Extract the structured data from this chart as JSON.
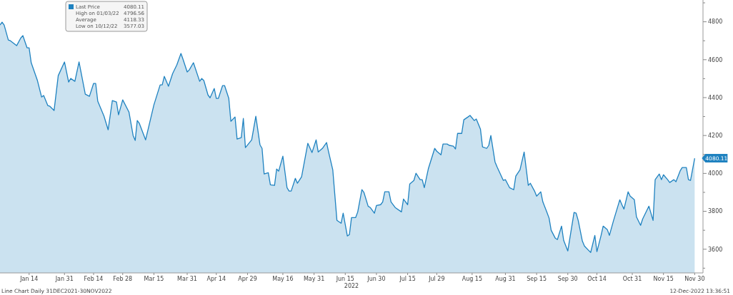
{
  "chart_data": {
    "type": "area",
    "xlabel": "2022",
    "x": [
      "2021-12-31",
      "2022-01-01",
      "2022-01-02",
      "2022-01-04",
      "2022-01-05",
      "2022-01-08",
      "2022-01-10",
      "2022-01-11",
      "2022-01-13",
      "2022-01-14",
      "2022-01-15",
      "2022-01-18",
      "2022-01-20",
      "2022-01-21",
      "2022-01-23",
      "2022-01-24",
      "2022-01-26",
      "2022-01-28",
      "2022-01-31",
      "2022-02-02",
      "2022-02-03",
      "2022-02-05",
      "2022-02-07",
      "2022-02-10",
      "2022-02-12",
      "2022-02-14",
      "2022-02-15",
      "2022-02-16",
      "2022-02-19",
      "2022-02-21",
      "2022-02-23",
      "2022-02-25",
      "2022-02-26",
      "2022-02-28",
      "2022-03-03",
      "2022-03-05",
      "2022-03-06",
      "2022-03-07",
      "2022-03-08",
      "2022-03-11",
      "2022-03-15",
      "2022-03-18",
      "2022-03-19",
      "2022-03-20",
      "2022-03-22",
      "2022-03-24",
      "2022-03-26",
      "2022-03-28",
      "2022-03-29",
      "2022-03-31",
      "2022-04-01",
      "2022-04-03",
      "2022-04-06",
      "2022-04-07",
      "2022-04-08",
      "2022-04-10",
      "2022-04-11",
      "2022-04-13",
      "2022-04-14",
      "2022-04-15",
      "2022-04-17",
      "2022-04-18",
      "2022-04-20",
      "2022-04-21",
      "2022-04-23",
      "2022-04-24",
      "2022-04-26",
      "2022-04-27",
      "2022-04-28",
      "2022-05-01",
      "2022-05-03",
      "2022-05-05",
      "2022-05-06",
      "2022-05-07",
      "2022-05-09",
      "2022-05-10",
      "2022-05-12",
      "2022-05-13",
      "2022-05-14",
      "2022-05-16",
      "2022-05-18",
      "2022-05-19",
      "2022-05-20",
      "2022-05-22",
      "2022-05-23",
      "2022-05-25",
      "2022-05-28",
      "2022-05-30",
      "2022-06-01",
      "2022-06-02",
      "2022-06-04",
      "2022-06-06",
      "2022-06-07",
      "2022-06-09",
      "2022-06-11",
      "2022-06-13",
      "2022-06-14",
      "2022-06-16",
      "2022-06-17",
      "2022-06-18",
      "2022-06-20",
      "2022-06-21",
      "2022-06-23",
      "2022-06-24",
      "2022-06-26",
      "2022-06-27",
      "2022-06-29",
      "2022-06-30",
      "2022-07-02",
      "2022-07-03",
      "2022-07-04",
      "2022-07-06",
      "2022-07-07",
      "2022-07-09",
      "2022-07-12",
      "2022-07-13",
      "2022-07-15",
      "2022-07-16",
      "2022-07-18",
      "2022-07-19",
      "2022-07-21",
      "2022-07-22",
      "2022-07-23",
      "2022-07-25",
      "2022-07-28",
      "2022-07-29",
      "2022-07-31",
      "2022-08-01",
      "2022-08-03",
      "2022-08-04",
      "2022-08-06",
      "2022-08-07",
      "2022-08-08",
      "2022-08-10",
      "2022-08-11",
      "2022-08-13",
      "2022-08-14",
      "2022-08-16",
      "2022-08-17",
      "2022-08-19",
      "2022-08-20",
      "2022-08-22",
      "2022-08-23",
      "2022-08-24",
      "2022-08-26",
      "2022-08-27",
      "2022-08-30",
      "2022-08-31",
      "2022-09-02",
      "2022-09-04",
      "2022-09-05",
      "2022-09-07",
      "2022-09-09",
      "2022-09-11",
      "2022-09-12",
      "2022-09-14",
      "2022-09-15",
      "2022-09-17",
      "2022-09-18",
      "2022-09-20",
      "2022-09-21",
      "2022-09-22",
      "2022-09-24",
      "2022-09-25",
      "2022-09-27",
      "2022-09-28",
      "2022-09-30",
      "2022-10-03",
      "2022-10-04",
      "2022-10-05",
      "2022-10-07",
      "2022-10-08",
      "2022-10-10",
      "2022-10-11",
      "2022-10-13",
      "2022-10-14",
      "2022-10-16",
      "2022-10-17",
      "2022-10-19",
      "2022-10-20",
      "2022-10-22",
      "2022-10-25",
      "2022-10-26",
      "2022-10-27",
      "2022-10-29",
      "2022-10-30",
      "2022-11-01",
      "2022-11-02",
      "2022-11-04",
      "2022-11-05",
      "2022-11-07",
      "2022-11-08",
      "2022-11-10",
      "2022-11-11",
      "2022-11-13",
      "2022-11-14",
      "2022-11-15",
      "2022-11-17",
      "2022-11-18",
      "2022-11-20",
      "2022-11-21",
      "2022-11-23",
      "2022-11-24",
      "2022-11-26",
      "2022-11-27",
      "2022-11-28",
      "2022-11-30"
    ],
    "series": [
      {
        "name": "Last Price",
        "color": "#1f82c0",
        "values": [
          4783,
          4798,
          4783,
          4704,
          4700,
          4674,
          4715,
          4727,
          4663,
          4663,
          4584,
          4490,
          4403,
          4411,
          4358,
          4354,
          4332,
          4516,
          4588,
          4482,
          4501,
          4486,
          4588,
          4418,
          4407,
          4475,
          4475,
          4381,
          4302,
          4230,
          4384,
          4377,
          4309,
          4388,
          4324,
          4200,
          4174,
          4279,
          4264,
          4177,
          4362,
          4467,
          4467,
          4512,
          4460,
          4527,
          4572,
          4633,
          4602,
          4535,
          4546,
          4584,
          4486,
          4501,
          4490,
          4414,
          4399,
          4448,
          4396,
          4396,
          4463,
          4463,
          4396,
          4275,
          4298,
          4181,
          4189,
          4290,
          4136,
          4177,
          4302,
          4151,
          4132,
          3997,
          4004,
          3940,
          3937,
          4023,
          4012,
          4091,
          3925,
          3907,
          3907,
          3974,
          3948,
          3982,
          4159,
          4110,
          4177,
          4113,
          4132,
          4163,
          4113,
          4019,
          3752,
          3737,
          3790,
          3670,
          3677,
          3767,
          3767,
          3797,
          3914,
          3899,
          3827,
          3820,
          3790,
          3831,
          3835,
          3850,
          3903,
          3903,
          3850,
          3820,
          3797,
          3865,
          3835,
          3944,
          3963,
          4001,
          3967,
          3967,
          3925,
          4027,
          4132,
          4117,
          4098,
          4155,
          4155,
          4148,
          4144,
          4129,
          4211,
          4211,
          4283,
          4298,
          4306,
          4279,
          4287,
          4234,
          4140,
          4132,
          4148,
          4200,
          4061,
          4034,
          3963,
          3967,
          3925,
          3914,
          3986,
          4019,
          4113,
          3937,
          3948,
          3907,
          3880,
          3903,
          3850,
          3794,
          3764,
          3700,
          3658,
          3651,
          3722,
          3647,
          3591,
          3794,
          3790,
          3752,
          3643,
          3617,
          3594,
          3583,
          3673,
          3587,
          3673,
          3722,
          3703,
          3673,
          3752,
          3861,
          3835,
          3812,
          3903,
          3880,
          3861,
          3771,
          3726,
          3760,
          3805,
          3827,
          3752,
          3967,
          3997,
          3967,
          3993,
          3967,
          3952,
          3967,
          3956,
          4013,
          4031,
          4031,
          3967,
          3963,
          4080
        ]
      }
    ],
    "xlim": [
      "2021-12-31",
      "2022-12-04"
    ],
    "xticks": [
      {
        "value": "2022-01-14",
        "label": "Jan 14"
      },
      {
        "value": "2022-01-31",
        "label": "Jan 31"
      },
      {
        "value": "2022-02-14",
        "label": "Feb 14"
      },
      {
        "value": "2022-02-28",
        "label": "Feb 28"
      },
      {
        "value": "2022-03-15",
        "label": "Mar 15"
      },
      {
        "value": "2022-03-31",
        "label": "Mar 31"
      },
      {
        "value": "2022-04-14",
        "label": "Apr 14"
      },
      {
        "value": "2022-04-29",
        "label": "Apr 29"
      },
      {
        "value": "2022-05-16",
        "label": "May 16"
      },
      {
        "value": "2022-05-31",
        "label": "May 31"
      },
      {
        "value": "2022-06-15",
        "label": "Jun 15"
      },
      {
        "value": "2022-06-30",
        "label": "Jun 30"
      },
      {
        "value": "2022-07-15",
        "label": "Jul 15"
      },
      {
        "value": "2022-07-29",
        "label": "Jul 29"
      },
      {
        "value": "2022-08-15",
        "label": "Aug 15"
      },
      {
        "value": "2022-08-31",
        "label": "Aug 31"
      },
      {
        "value": "2022-09-15",
        "label": "Sep 15"
      },
      {
        "value": "2022-09-30",
        "label": "Sep 30"
      },
      {
        "value": "2022-10-14",
        "label": "Oct 14"
      },
      {
        "value": "2022-10-31",
        "label": "Oct 31"
      },
      {
        "value": "2022-11-15",
        "label": "Nov 15"
      },
      {
        "value": "2022-11-30",
        "label": "Nov 30"
      }
    ],
    "ylim": [
      3475,
      4915
    ],
    "yticks": [
      {
        "value": 3500,
        "label": null
      },
      3600,
      {
        "value": 3700,
        "label": null
      },
      3800,
      {
        "value": 3900,
        "label": null
      },
      4000,
      {
        "value": 4100,
        "label": null
      },
      4200,
      {
        "value": 4300,
        "label": null
      },
      4400,
      {
        "value": 4500,
        "label": null
      },
      4600,
      {
        "value": 4700,
        "label": null
      },
      4800,
      {
        "value": 4900,
        "label": null
      }
    ],
    "legend": "top left",
    "annotations": [
      "4080.11",
      "High on 01/03/22",
      "4796.56",
      "Average",
      "4118.33",
      "Low on 10/12/22",
      "3577.03",
      "Line Chart  Daily 31DEC2021-30NOV2022",
      "12-Dec-2022 13:36:51",
      {
        "text": "4080.11",
        "x": "2022-11-30",
        "y": 4080.11
      }
    ]
  }
}
